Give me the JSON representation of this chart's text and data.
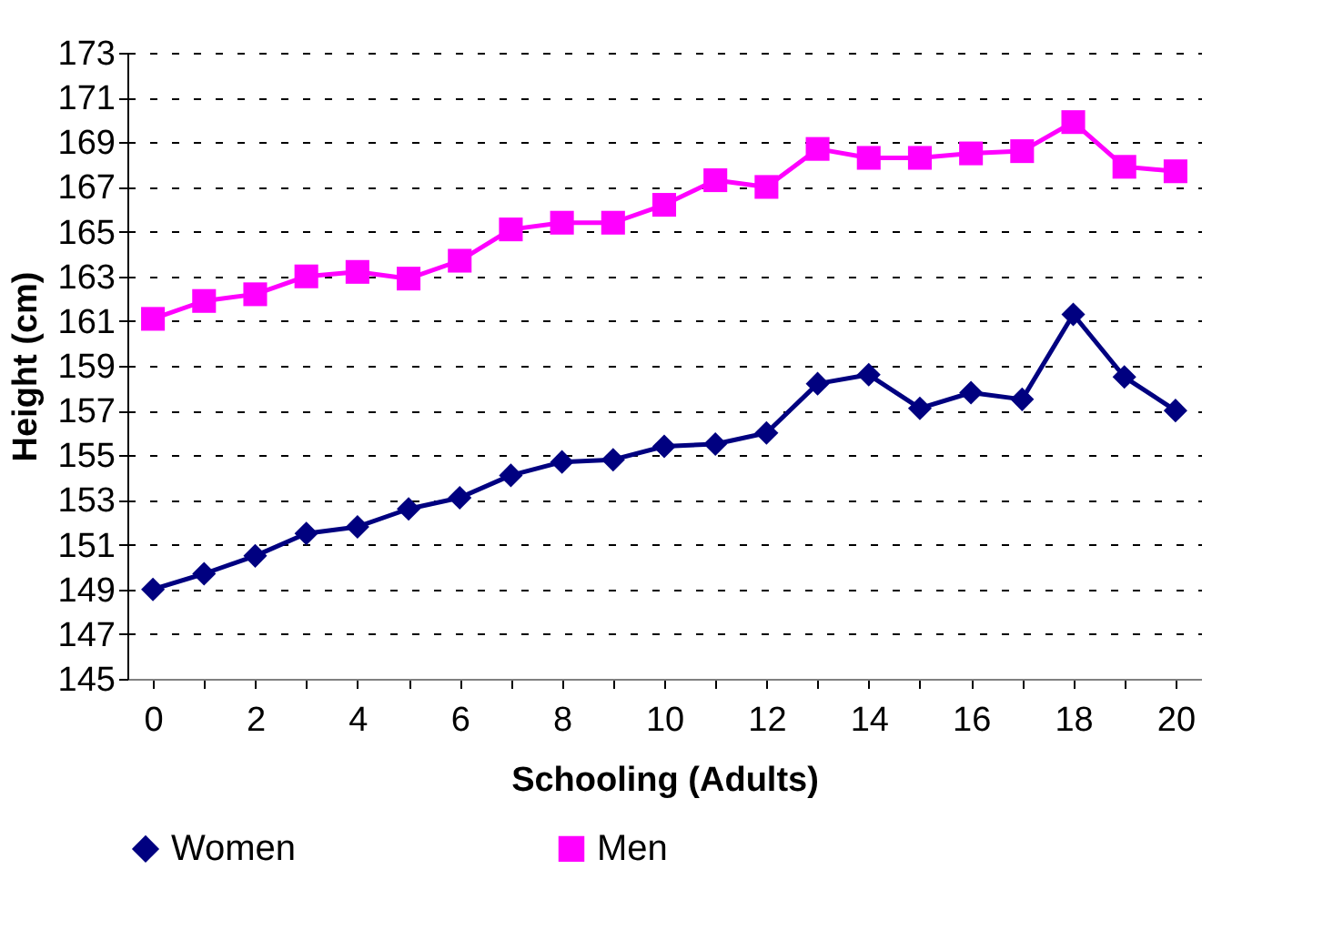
{
  "chart_data": {
    "type": "line",
    "xlabel": "Schooling (Adults)",
    "ylabel": "Height (cm)",
    "categories": [
      "0",
      null,
      "2",
      null,
      "4",
      null,
      "6",
      null,
      "8",
      null,
      "10",
      null,
      "12",
      null,
      "14",
      null,
      "16",
      null,
      "18",
      null,
      "20"
    ],
    "series": [
      {
        "name": "Women",
        "color": "#000080",
        "marker": "diamond",
        "values": [
          149.0,
          149.7,
          150.5,
          151.5,
          151.8,
          152.6,
          153.1,
          154.1,
          154.7,
          154.8,
          155.4,
          155.5,
          156.0,
          158.2,
          158.6,
          157.1,
          157.8,
          157.5,
          161.3,
          158.5,
          157.0
        ]
      },
      {
        "name": "Men",
        "color": "#ff00ff",
        "marker": "square",
        "values": [
          161.1,
          161.9,
          162.2,
          163.0,
          163.2,
          162.9,
          163.7,
          165.1,
          165.4,
          165.4,
          166.2,
          167.3,
          167.0,
          168.7,
          168.3,
          168.3,
          168.5,
          168.6,
          169.9,
          167.9,
          167.7
        ]
      }
    ],
    "ylim": [
      145,
      173
    ],
    "yticks": [
      145,
      147,
      149,
      151,
      153,
      155,
      157,
      159,
      161,
      163,
      165,
      167,
      169,
      171,
      173
    ],
    "grid": "y",
    "legend": "bottom"
  }
}
